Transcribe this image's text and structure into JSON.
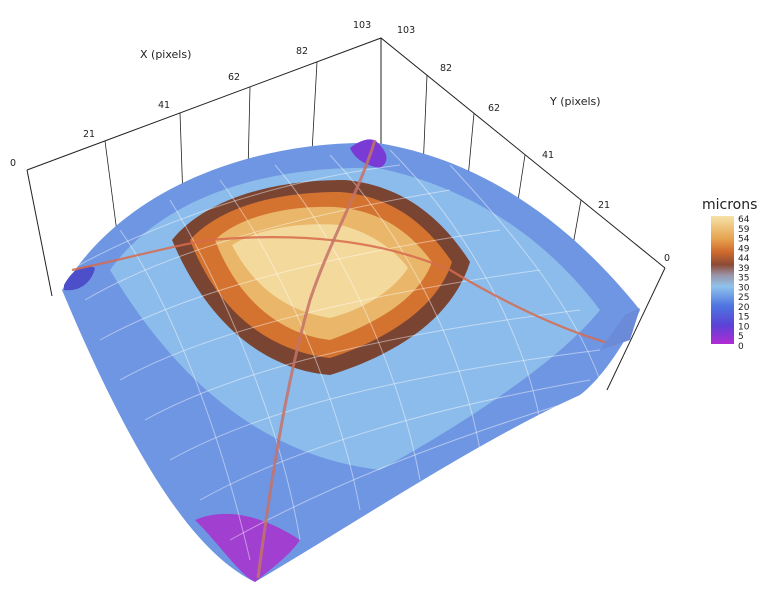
{
  "chart_data": {
    "type": "surface3d",
    "x_axis": {
      "label": "X (pixels)",
      "ticks": [
        "0",
        "21",
        "41",
        "62",
        "82",
        "103"
      ],
      "range": [
        0,
        103
      ]
    },
    "y_axis": {
      "label": "Y (pixels)",
      "ticks": [
        "0",
        "21",
        "41",
        "62",
        "82",
        "103"
      ],
      "range": [
        0,
        103
      ]
    },
    "z_range": [
      0,
      64
    ],
    "z_unit": "microns",
    "surface": {
      "description_values": {
        "peak_height": 64,
        "plateau_height": 50,
        "edge_height": 20,
        "corner_min": 3
      }
    },
    "colorbar": {
      "title": "microns",
      "ticks": [
        "64",
        "59",
        "54",
        "49",
        "44",
        "39",
        "35",
        "30",
        "25",
        "20",
        "15",
        "10",
        "5",
        "0"
      ],
      "colors": [
        "#f3dca0",
        "#d9712f",
        "#6e3d25",
        "#7fb6e0",
        "#4f63d8",
        "#a32ad4"
      ]
    }
  }
}
